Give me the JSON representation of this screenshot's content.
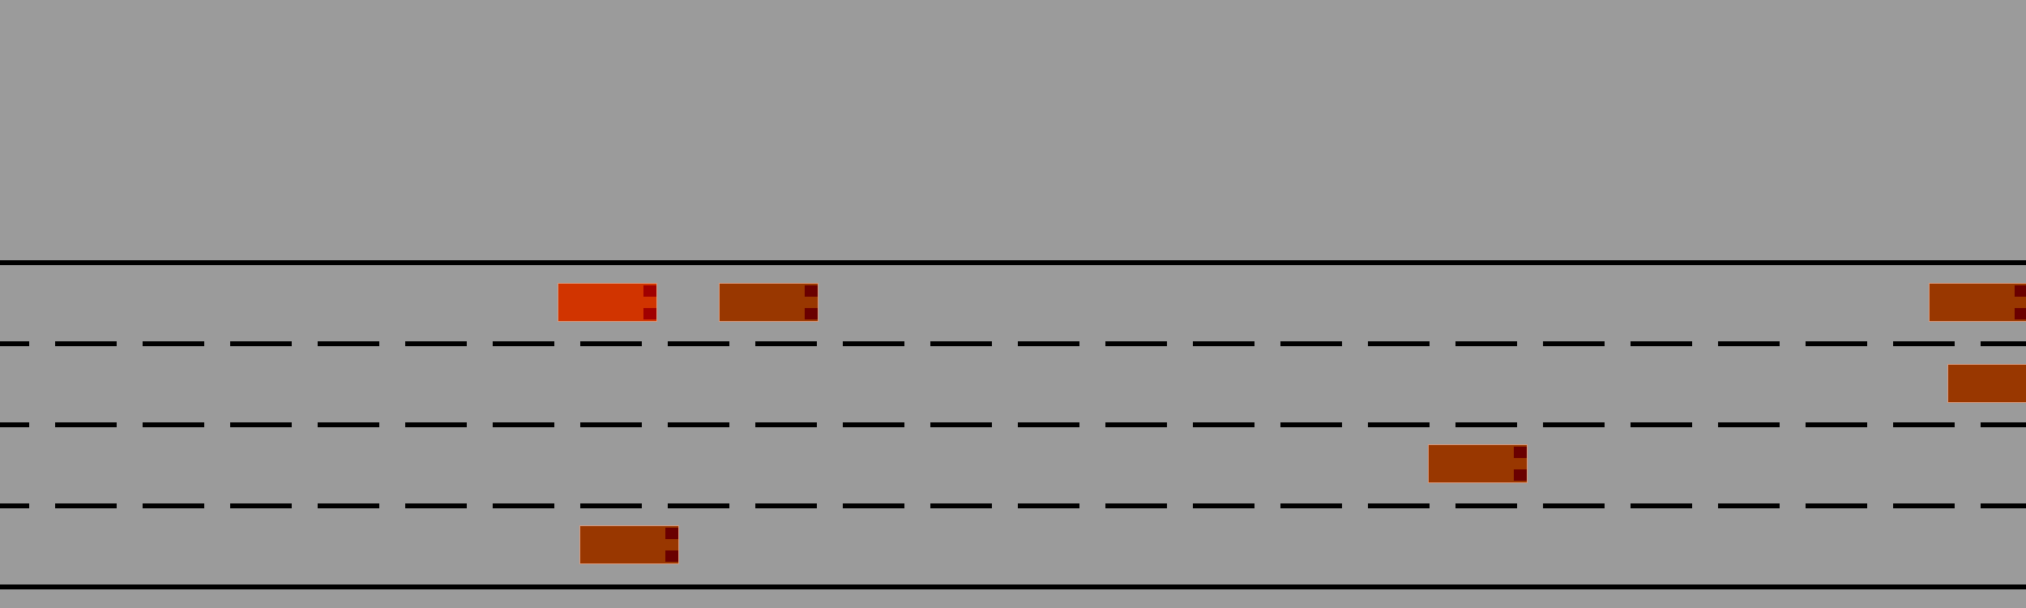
{
  "scene": {
    "background_color": "#9b9b9b",
    "line_color": "#000000",
    "lane_count": 4
  },
  "player": {
    "color": "#d13400",
    "light_color": "#a00000"
  },
  "npc_style": {
    "color": "#993700",
    "light_color": "#6a0000"
  }
}
